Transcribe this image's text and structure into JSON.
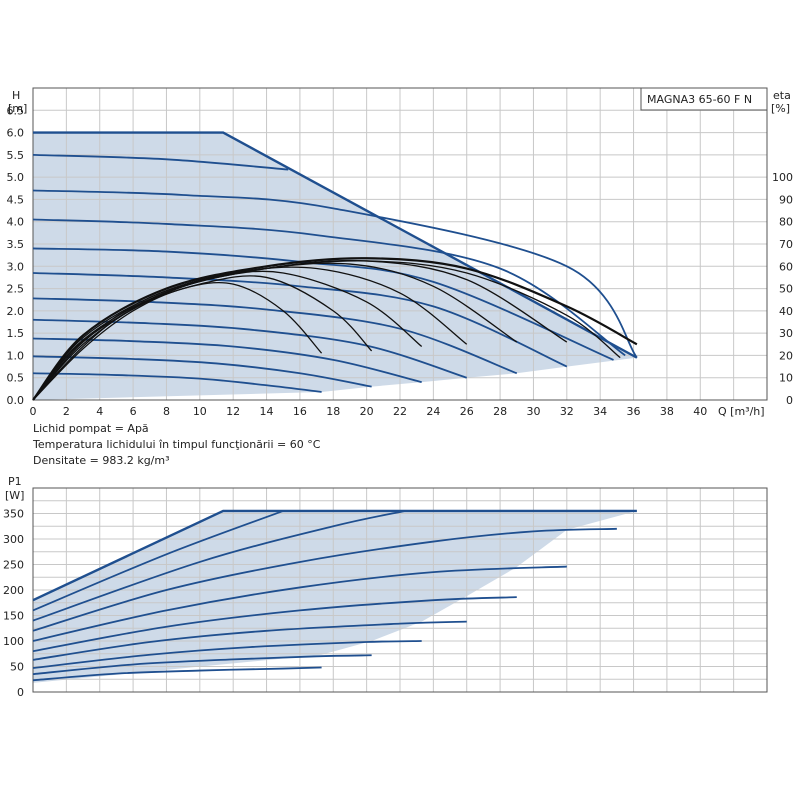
{
  "chart_data": [
    {
      "type": "line",
      "title": "MAGNA3 65-60 F N",
      "ylabel_top": "H",
      "ylabel_unit": "[m]",
      "y2label_top": "eta",
      "y2label_unit": "[%]",
      "xlabel": "Q [m³/h]",
      "x_ticks": [
        "0",
        "2",
        "4",
        "6",
        "8",
        "10",
        "12",
        "14",
        "16",
        "18",
        "20",
        "22",
        "24",
        "26",
        "28",
        "30",
        "32",
        "34",
        "36",
        "38",
        "40"
      ],
      "y_ticks": [
        "0.0",
        "0.5",
        "1.0",
        "1.5",
        "2.0",
        "2.5",
        "3.0",
        "3.5",
        "4.0",
        "4.5",
        "5.0",
        "5.5",
        "6.0",
        "6.5"
      ],
      "y2_ticks": [
        "0",
        "10",
        "20",
        "30",
        "40",
        "50",
        "60",
        "70",
        "80",
        "90",
        "100"
      ],
      "xlim": [
        0,
        44
      ],
      "ylim": [
        0,
        7.0
      ],
      "y2lim": [
        0,
        140
      ],
      "grid": true,
      "area": [
        [
          0,
          6.0
        ],
        [
          11.4,
          6.0
        ],
        [
          36.2,
          0.95
        ],
        [
          32,
          0.75
        ],
        [
          29,
          0.6
        ],
        [
          26,
          0.5
        ],
        [
          23.3,
          0.4
        ],
        [
          20.3,
          0.3
        ],
        [
          17.3,
          0.18
        ],
        [
          0,
          0
        ]
      ],
      "series": [
        {
          "x": [
            0,
            11.4,
            36.2
          ],
          "y": [
            6.0,
            6.0,
            0.95
          ],
          "bold": true
        },
        {
          "x": [
            0,
            8,
            15.3
          ],
          "y": [
            5.5,
            5.4,
            5.17
          ]
        },
        {
          "x": [
            0,
            9,
            18,
            32,
            36.2
          ],
          "y": [
            4.7,
            4.6,
            4.3,
            3.0,
            0.95
          ]
        },
        {
          "x": [
            0,
            8,
            17,
            28,
            35.5
          ],
          "y": [
            4.05,
            3.95,
            3.7,
            2.95,
            1.0
          ]
        },
        {
          "x": [
            0,
            8,
            16,
            24,
            34.8
          ],
          "y": [
            3.4,
            3.33,
            3.1,
            2.65,
            0.9
          ]
        },
        {
          "x": [
            0,
            8,
            16,
            24,
            32
          ],
          "y": [
            2.85,
            2.75,
            2.55,
            2.1,
            0.75
          ]
        },
        {
          "x": [
            0,
            7,
            14,
            22,
            29
          ],
          "y": [
            2.28,
            2.2,
            2.03,
            1.6,
            0.6
          ]
        },
        {
          "x": [
            0,
            7,
            13,
            20,
            26
          ],
          "y": [
            1.8,
            1.72,
            1.58,
            1.22,
            0.5
          ]
        },
        {
          "x": [
            0,
            6,
            12,
            18,
            23.3
          ],
          "y": [
            1.38,
            1.32,
            1.2,
            0.9,
            0.4
          ]
        },
        {
          "x": [
            0,
            6,
            11,
            16,
            20.3
          ],
          "y": [
            0.98,
            0.92,
            0.82,
            0.6,
            0.3
          ]
        },
        {
          "x": [
            0,
            5,
            10,
            14,
            17.3
          ],
          "y": [
            0.6,
            0.56,
            0.48,
            0.33,
            0.18
          ]
        }
      ],
      "efficiency": [
        {
          "x": [
            0,
            3,
            8,
            14,
            20,
            26,
            32,
            36.2
          ],
          "y": [
            0,
            1.45,
            2.5,
            3.0,
            3.18,
            2.95,
            2.1,
            1.25
          ],
          "bold": true
        },
        {
          "x": [
            0,
            3,
            8,
            14,
            20,
            26,
            32,
            35.2
          ],
          "y": [
            0,
            1.4,
            2.45,
            2.95,
            3.12,
            2.85,
            1.9,
            0.95
          ],
          "bold": false
        },
        {
          "x": [
            0,
            3,
            8,
            14,
            20,
            26,
            32
          ],
          "y": [
            0,
            1.35,
            2.42,
            2.95,
            3.12,
            2.7,
            1.3
          ],
          "bold": false
        },
        {
          "x": [
            0,
            3,
            8,
            13,
            19,
            24,
            29
          ],
          "y": [
            0,
            1.32,
            2.4,
            2.9,
            3.05,
            2.55,
            1.3
          ],
          "bold": false
        },
        {
          "x": [
            0,
            3,
            7,
            12,
            17,
            22,
            26
          ],
          "y": [
            0,
            1.3,
            2.3,
            2.85,
            2.95,
            2.4,
            1.25
          ],
          "bold": false
        },
        {
          "x": [
            0,
            3,
            7,
            11,
            15,
            20,
            23.3
          ],
          "y": [
            0,
            1.25,
            2.25,
            2.75,
            2.85,
            2.2,
            1.2
          ],
          "bold": false
        },
        {
          "x": [
            0,
            3,
            6,
            10,
            14,
            18,
            20.3
          ],
          "y": [
            0,
            1.2,
            2.05,
            2.6,
            2.75,
            2.0,
            1.1
          ],
          "bold": false
        },
        {
          "x": [
            0,
            3,
            6,
            9,
            12,
            15,
            17.3
          ],
          "y": [
            0,
            1.15,
            2.0,
            2.5,
            2.6,
            2.0,
            1.05
          ],
          "bold": false
        }
      ],
      "notes": [
        "Lichid pompat = Apă",
        "Temperatura lichidului în timpul funcţionării = 60 °C",
        "Densitate = 983.2 kg/m³"
      ]
    },
    {
      "type": "line",
      "ylabel_top": "P1",
      "ylabel_unit": "[W]",
      "y_ticks": [
        "0",
        "50",
        "100",
        "150",
        "200",
        "250",
        "300",
        "350"
      ],
      "xlim": [
        0,
        44
      ],
      "ylim": [
        0,
        400
      ],
      "grid": true,
      "area": [
        [
          0,
          180
        ],
        [
          11.4,
          355
        ],
        [
          36.2,
          355
        ],
        [
          32,
          318
        ],
        [
          29,
          245
        ],
        [
          26,
          188
        ],
        [
          23.3,
          138
        ],
        [
          20.3,
          100
        ],
        [
          17.3,
          73
        ],
        [
          0,
          18
        ]
      ],
      "series": [
        {
          "x": [
            0,
            11.4,
            36.2
          ],
          "y": [
            180,
            355,
            355
          ],
          "bold": true
        },
        {
          "x": [
            0,
            8,
            15
          ],
          "y": [
            160,
            270,
            355
          ]
        },
        {
          "x": [
            0,
            10,
            18,
            22.3
          ],
          "y": [
            140,
            255,
            325,
            355
          ]
        },
        {
          "x": [
            0,
            8,
            16,
            24,
            30,
            35
          ],
          "y": [
            120,
            200,
            255,
            295,
            315,
            320
          ]
        },
        {
          "x": [
            0,
            8,
            16,
            24,
            32
          ],
          "y": [
            100,
            160,
            205,
            235,
            246
          ]
        },
        {
          "x": [
            0,
            8,
            16,
            24,
            29
          ],
          "y": [
            80,
            128,
            160,
            180,
            186
          ]
        },
        {
          "x": [
            0,
            7,
            14,
            22,
            26
          ],
          "y": [
            63,
            98,
            120,
            134,
            138
          ]
        },
        {
          "x": [
            0,
            7,
            13,
            20,
            23.3
          ],
          "y": [
            47,
            73,
            88,
            98,
            100
          ]
        },
        {
          "x": [
            0,
            6,
            12,
            17,
            20.3
          ],
          "y": [
            35,
            54,
            64,
            70,
            72
          ]
        },
        {
          "x": [
            0,
            5,
            10,
            15,
            17.3
          ],
          "y": [
            23,
            36,
            42,
            46,
            48
          ]
        }
      ]
    }
  ]
}
